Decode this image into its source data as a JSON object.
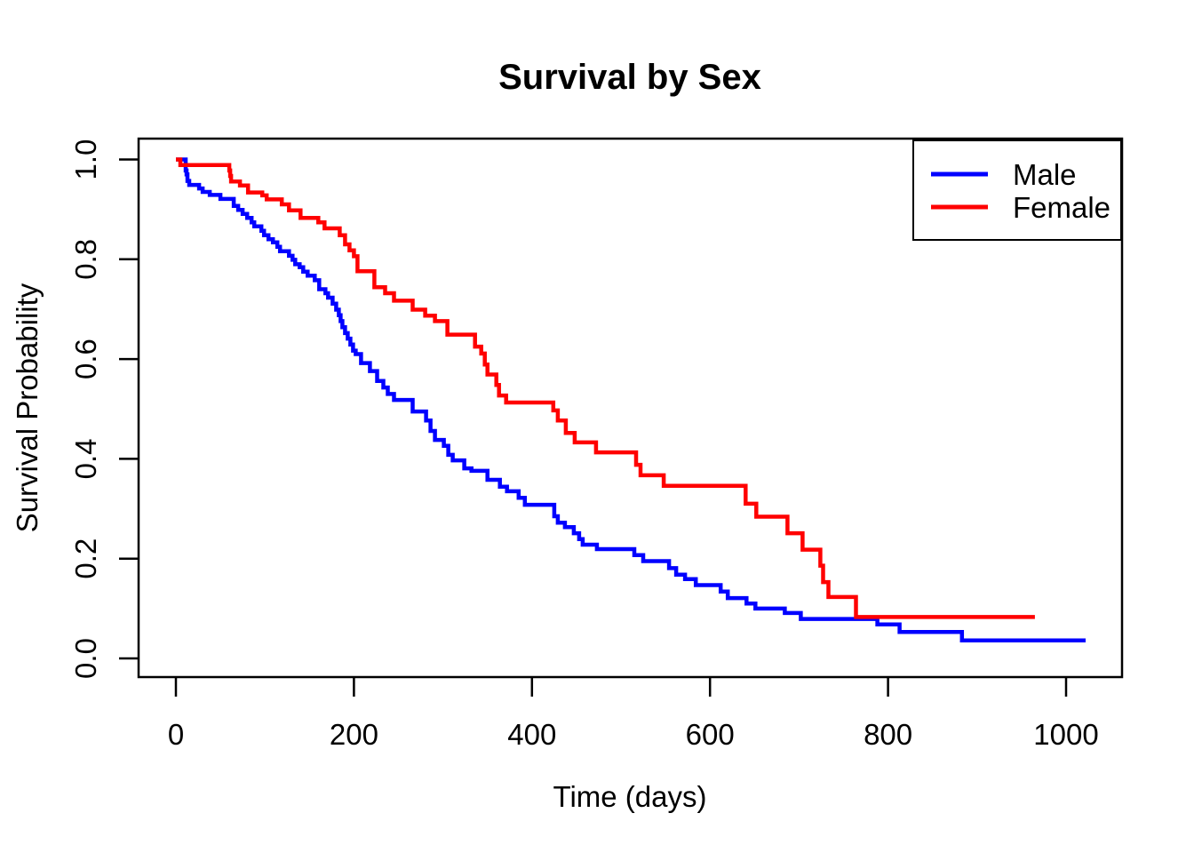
{
  "title": "Survival by Sex",
  "chart_data": {
    "type": "line",
    "variant": "kaplan_meier_step",
    "title": "Survival by Sex",
    "xlabel": "Time (days)",
    "ylabel": "Survival Probability",
    "xlim": [
      0,
      1022
    ],
    "ylim": [
      0,
      1
    ],
    "grid": false,
    "frame": true,
    "x_ticks": [
      "0",
      "200",
      "400",
      "600",
      "800",
      "1000"
    ],
    "x_tick_values": [
      0,
      200,
      400,
      600,
      800,
      1000
    ],
    "y_ticks": [
      "0.0",
      "0.2",
      "0.4",
      "0.6",
      "0.8",
      "1.0"
    ],
    "y_tick_values": [
      0,
      0.2,
      0.4,
      0.6,
      0.8,
      1.0
    ],
    "legend": {
      "position": "topright",
      "entries": [
        {
          "label": "Male",
          "color": "#0000ff"
        },
        {
          "label": "Female",
          "color": "#ff0000"
        }
      ]
    },
    "series": [
      {
        "name": "Male",
        "color": "#0000ff",
        "end_time": 1022,
        "steps": [
          [
            0,
            1.0
          ],
          [
            11,
            0.978
          ],
          [
            12,
            0.97
          ],
          [
            13,
            0.957
          ],
          [
            15,
            0.949
          ],
          [
            26,
            0.942
          ],
          [
            30,
            0.935
          ],
          [
            38,
            0.929
          ],
          [
            50,
            0.921
          ],
          [
            65,
            0.907
          ],
          [
            70,
            0.899
          ],
          [
            75,
            0.891
          ],
          [
            80,
            0.883
          ],
          [
            85,
            0.874
          ],
          [
            88,
            0.866
          ],
          [
            96,
            0.857
          ],
          [
            99,
            0.848
          ],
          [
            104,
            0.84
          ],
          [
            109,
            0.834
          ],
          [
            114,
            0.825
          ],
          [
            117,
            0.816
          ],
          [
            127,
            0.807
          ],
          [
            131,
            0.799
          ],
          [
            134,
            0.79
          ],
          [
            139,
            0.784
          ],
          [
            143,
            0.775
          ],
          [
            148,
            0.767
          ],
          [
            156,
            0.758
          ],
          [
            161,
            0.74
          ],
          [
            168,
            0.732
          ],
          [
            171,
            0.723
          ],
          [
            176,
            0.711
          ],
          [
            180,
            0.699
          ],
          [
            183,
            0.688
          ],
          [
            185,
            0.676
          ],
          [
            187,
            0.664
          ],
          [
            190,
            0.652
          ],
          [
            193,
            0.641
          ],
          [
            196,
            0.629
          ],
          [
            199,
            0.617
          ],
          [
            202,
            0.61
          ],
          [
            208,
            0.592
          ],
          [
            218,
            0.576
          ],
          [
            226,
            0.556
          ],
          [
            233,
            0.543
          ],
          [
            238,
            0.53
          ],
          [
            245,
            0.518
          ],
          [
            266,
            0.495
          ],
          [
            281,
            0.477
          ],
          [
            286,
            0.456
          ],
          [
            291,
            0.438
          ],
          [
            301,
            0.426
          ],
          [
            306,
            0.408
          ],
          [
            311,
            0.397
          ],
          [
            324,
            0.381
          ],
          [
            332,
            0.376
          ],
          [
            350,
            0.358
          ],
          [
            364,
            0.344
          ],
          [
            372,
            0.335
          ],
          [
            385,
            0.322
          ],
          [
            392,
            0.308
          ],
          [
            425,
            0.285
          ],
          [
            429,
            0.272
          ],
          [
            437,
            0.263
          ],
          [
            447,
            0.251
          ],
          [
            453,
            0.239
          ],
          [
            457,
            0.228
          ],
          [
            473,
            0.219
          ],
          [
            515,
            0.207
          ],
          [
            525,
            0.195
          ],
          [
            554,
            0.181
          ],
          [
            562,
            0.168
          ],
          [
            572,
            0.159
          ],
          [
            584,
            0.147
          ],
          [
            612,
            0.134
          ],
          [
            620,
            0.121
          ],
          [
            641,
            0.11
          ],
          [
            651,
            0.1
          ],
          [
            684,
            0.091
          ],
          [
            702,
            0.079
          ],
          [
            788,
            0.068
          ],
          [
            813,
            0.053
          ],
          [
            883,
            0.036
          ]
        ]
      },
      {
        "name": "Female",
        "color": "#ff0000",
        "end_time": 965,
        "steps": [
          [
            0,
            1.0
          ],
          [
            5,
            0.989
          ],
          [
            60,
            0.978
          ],
          [
            61,
            0.967
          ],
          [
            62,
            0.956
          ],
          [
            72,
            0.948
          ],
          [
            81,
            0.934
          ],
          [
            97,
            0.928
          ],
          [
            102,
            0.92
          ],
          [
            119,
            0.91
          ],
          [
            127,
            0.898
          ],
          [
            140,
            0.883
          ],
          [
            160,
            0.874
          ],
          [
            167,
            0.862
          ],
          [
            184,
            0.848
          ],
          [
            190,
            0.83
          ],
          [
            195,
            0.818
          ],
          [
            200,
            0.806
          ],
          [
            204,
            0.776
          ],
          [
            223,
            0.744
          ],
          [
            235,
            0.732
          ],
          [
            245,
            0.717
          ],
          [
            266,
            0.699
          ],
          [
            280,
            0.687
          ],
          [
            291,
            0.676
          ],
          [
            305,
            0.649
          ],
          [
            336,
            0.625
          ],
          [
            343,
            0.611
          ],
          [
            347,
            0.589
          ],
          [
            350,
            0.569
          ],
          [
            360,
            0.548
          ],
          [
            363,
            0.527
          ],
          [
            371,
            0.513
          ],
          [
            424,
            0.497
          ],
          [
            429,
            0.477
          ],
          [
            438,
            0.452
          ],
          [
            448,
            0.433
          ],
          [
            472,
            0.413
          ],
          [
            517,
            0.388
          ],
          [
            522,
            0.367
          ],
          [
            548,
            0.346
          ],
          [
            640,
            0.31
          ],
          [
            652,
            0.284
          ],
          [
            687,
            0.251
          ],
          [
            704,
            0.218
          ],
          [
            724,
            0.186
          ],
          [
            727,
            0.153
          ],
          [
            733,
            0.123
          ],
          [
            764,
            0.083
          ]
        ]
      }
    ]
  }
}
